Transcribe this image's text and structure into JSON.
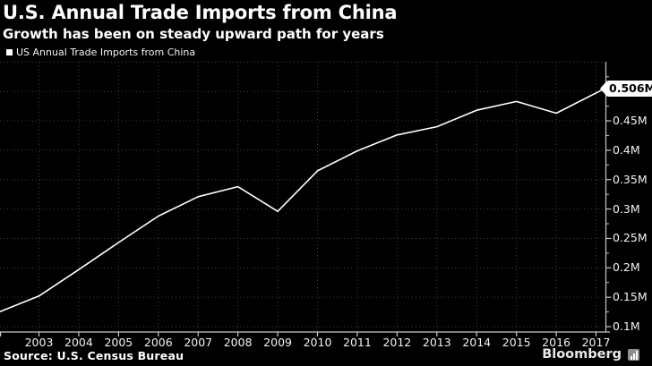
{
  "header": {
    "title": "U.S. Annual Trade Imports from China",
    "subtitle": "Growth has been on steady upward path for years"
  },
  "legend": {
    "label": "US Annual Trade Imports from China",
    "marker_color": "#ffffff"
  },
  "chart_data": {
    "type": "line",
    "title": "U.S. Annual Trade Imports from China",
    "subtitle": "Growth has been on steady upward path for years",
    "xlabel": "",
    "ylabel": "",
    "units": "M (millions USD of imports, axis in M)",
    "x": [
      2002,
      2003,
      2004,
      2005,
      2006,
      2007,
      2008,
      2009,
      2010,
      2011,
      2012,
      2013,
      2014,
      2015,
      2016,
      2017
    ],
    "series": [
      {
        "name": "US Annual Trade Imports from China",
        "color": "#ffffff",
        "values": [
          0.125,
          0.152,
          0.197,
          0.243,
          0.288,
          0.321,
          0.338,
          0.296,
          0.365,
          0.399,
          0.426,
          0.44,
          0.468,
          0.483,
          0.463,
          0.506
        ]
      }
    ],
    "x_tick_years": [
      2003,
      2004,
      2005,
      2006,
      2007,
      2008,
      2009,
      2010,
      2011,
      2012,
      2013,
      2014,
      2015,
      2016,
      2017
    ],
    "x_tick_labels": [
      "2003",
      "2004",
      "2005",
      "2006",
      "2007",
      "2008",
      "2009",
      "2010",
      "2011",
      "2012",
      "2013",
      "2014",
      "2015",
      "2016",
      "2017"
    ],
    "y_major_ticks": [
      {
        "value": 0.1,
        "label": "0.1M"
      },
      {
        "value": 0.15,
        "label": "0.15M"
      },
      {
        "value": 0.2,
        "label": "0.2M"
      },
      {
        "value": 0.25,
        "label": "0.25M"
      },
      {
        "value": 0.3,
        "label": "0.3M"
      },
      {
        "value": 0.35,
        "label": "0.35M"
      },
      {
        "value": 0.4,
        "label": "0.4M"
      },
      {
        "value": 0.45,
        "label": "0.45M"
      },
      {
        "value": 0.5,
        "label": ""
      }
    ],
    "y_minor_tick_values": [
      0.125,
      0.175,
      0.225,
      0.275,
      0.325,
      0.375,
      0.425,
      0.475,
      0.525
    ],
    "y_grid_values": [
      0.1,
      0.15,
      0.2,
      0.25,
      0.3,
      0.35,
      0.4,
      0.45,
      0.5,
      0.55
    ],
    "xlim": [
      2002,
      2017.25
    ],
    "ylim": [
      0.091,
      0.55
    ],
    "grid": true,
    "legend_position": "top-left",
    "callout": {
      "value": 0.5056,
      "label": "0.506M"
    }
  },
  "footer": {
    "source": "Source: U.S. Census Bureau",
    "brand": "Bloomberg",
    "brand_icon": "bar-chart-icon"
  },
  "colors": {
    "background": "#000000",
    "line": "#ffffff",
    "grid": "#404040",
    "axis": "#c8c8c8",
    "tick_text": "#f2f2f2",
    "callout_bg": "#ffffff",
    "callout_text": "#000000"
  }
}
